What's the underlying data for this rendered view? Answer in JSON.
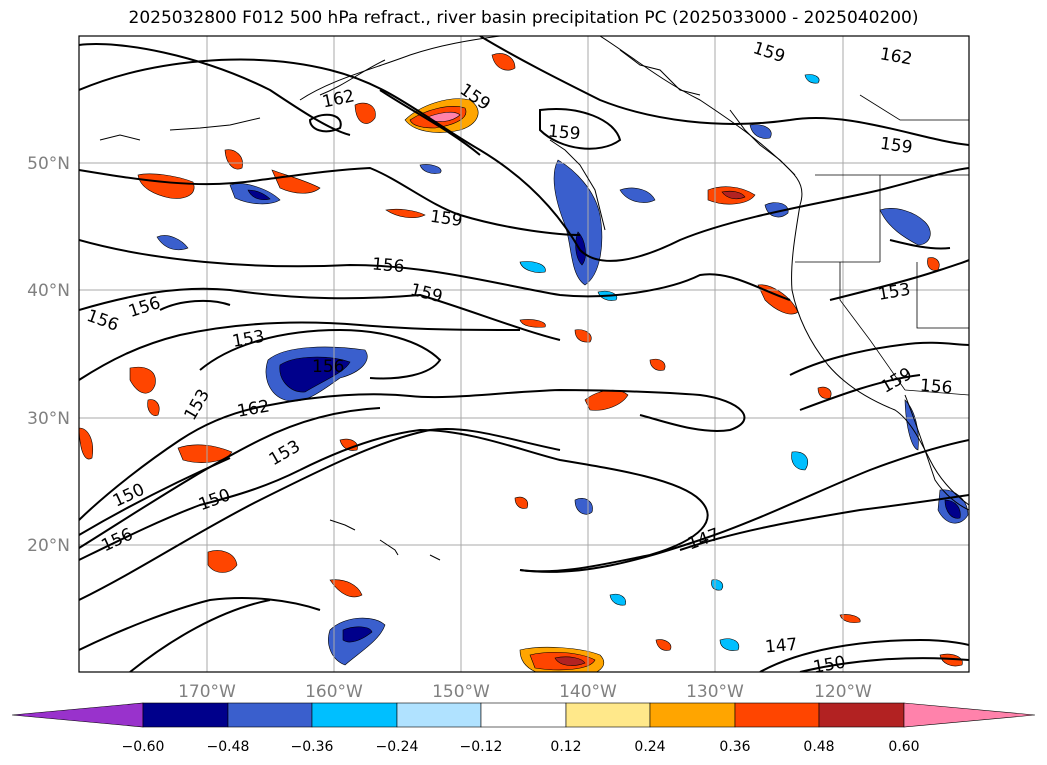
{
  "title": "2025032800 F012 500 hPa refract., river basin precipitation PC (2025033000 - 2025040200)",
  "axes": {
    "lat_labels": [
      "50°N",
      "40°N",
      "30°N",
      "20°N"
    ],
    "lon_labels": [
      "170°W",
      "160°W",
      "150°W",
      "140°W",
      "130°W",
      "120°W"
    ],
    "label_color": "#808080"
  },
  "contour_labels": [
    "162",
    "159",
    "159",
    "159",
    "162",
    "159",
    "159",
    "156",
    "159",
    "156",
    "156",
    "153",
    "153",
    "159",
    "156",
    "156",
    "162",
    "153",
    "153",
    "150",
    "150",
    "156",
    "147",
    "147",
    "150"
  ],
  "colorbar": {
    "ticks": [
      "−0.60",
      "−0.48",
      "−0.36",
      "−0.24",
      "−0.12",
      "0.12",
      "0.24",
      "0.36",
      "0.48",
      "0.60"
    ],
    "colors": [
      "#9932CC",
      "#00008B",
      "#3A5FCD",
      "#00BFFF",
      "#B0E2FF",
      "#FFFFFF",
      "#FFE88A",
      "#FFA500",
      "#FF4500",
      "#B22222",
      "#FF82AB"
    ]
  }
}
